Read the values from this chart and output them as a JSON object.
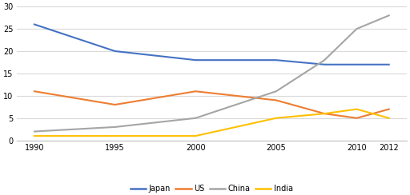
{
  "years": [
    1990,
    1995,
    2000,
    2005,
    2008,
    2010,
    2012
  ],
  "japan": [
    26,
    20,
    18,
    18,
    17,
    17,
    17
  ],
  "us": [
    11,
    8,
    11,
    9,
    6,
    5,
    7
  ],
  "china": [
    2,
    3,
    5,
    11,
    18,
    25,
    28
  ],
  "india": [
    1,
    1,
    1,
    5,
    6,
    7,
    5
  ],
  "japan_color": "#4472C4",
  "us_color": "#ED7D31",
  "china_color": "#A5A5A5",
  "india_color": "#FFC000",
  "ylim": [
    0,
    30
  ],
  "yticks": [
    0,
    5,
    10,
    15,
    20,
    25,
    30
  ],
  "xticks": [
    1990,
    1995,
    2000,
    2005,
    2010,
    2012
  ],
  "legend_labels": [
    "Japan",
    "US",
    "China",
    "India"
  ],
  "figsize": [
    5.12,
    2.44
  ],
  "dpi": 100,
  "bg_color": "#ffffff",
  "grid_color": "#d9d9d9",
  "linewidth": 1.5,
  "tick_fontsize": 7,
  "legend_fontsize": 7
}
